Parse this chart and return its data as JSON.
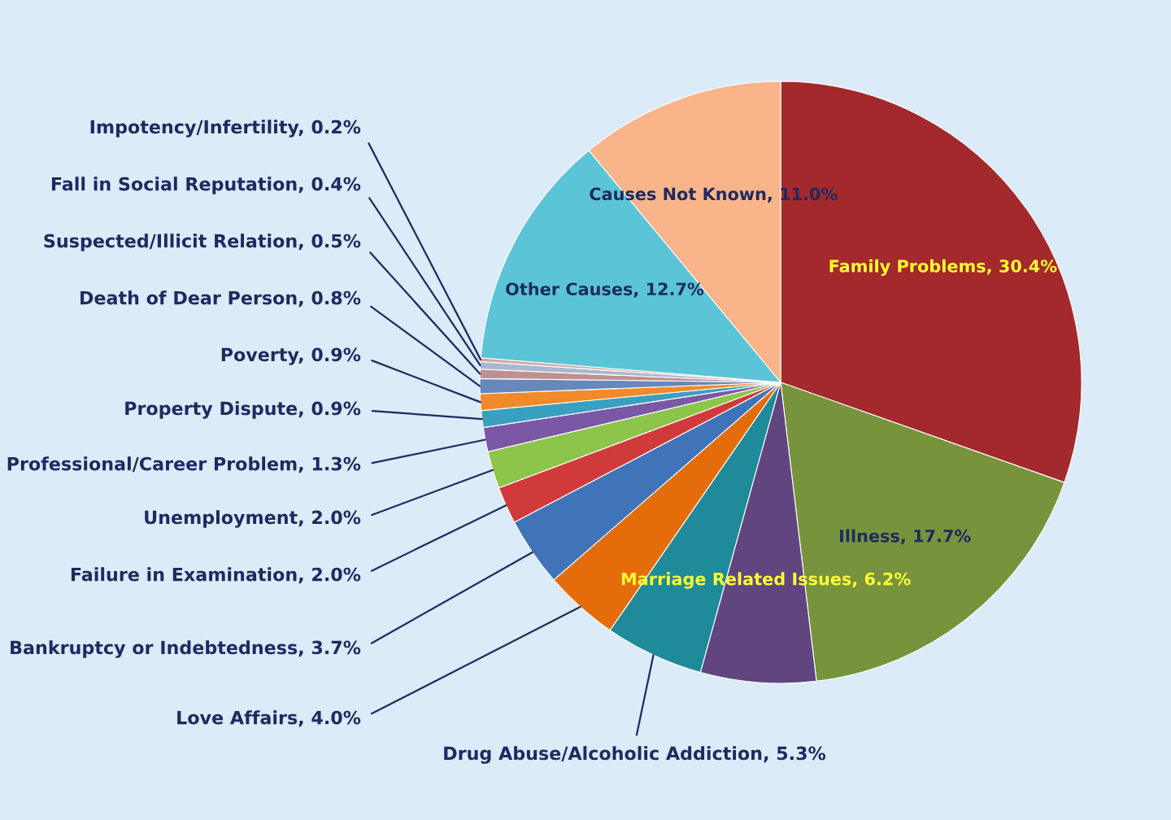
{
  "chart_data": {
    "type": "pie",
    "categories": [
      "Family Problems",
      "Illness",
      "Marriage Related Issues",
      "Drug Abuse/Alcoholic Addiction",
      "Love Affairs",
      "Bankruptcy or Indebtedness",
      "Failure in Examination",
      "Unemployment",
      "Professional/Career Problem",
      "Property Dispute",
      "Poverty",
      "Death of Dear Person",
      "Suspected/Illicit Relation",
      "Fall in Social Reputation",
      "Impotency/Infertility",
      "Other Causes",
      "Causes Not Known"
    ],
    "values": [
      30.4,
      17.7,
      6.2,
      5.3,
      4.0,
      3.7,
      2.0,
      2.0,
      1.3,
      0.9,
      0.9,
      0.8,
      0.5,
      0.4,
      0.2,
      12.7,
      11.0
    ],
    "value_labels": [
      "30.4%",
      "17.7%",
      "6.2%",
      "5.3%",
      "4.0%",
      "3.7%",
      "2.0%",
      "2.0%",
      "1.3%",
      "0.9%",
      "0.9%",
      "0.8%",
      "0.5%",
      "0.4%",
      "0.2%",
      "12.7%",
      "11.0%"
    ],
    "colors": [
      "#a3292c",
      "#77933c",
      "#60457e",
      "#1f8a99",
      "#e46c0a",
      "#3f74b8",
      "#d03a3a",
      "#8dc44a",
      "#7a58a6",
      "#3aa0c0",
      "#f08a2a",
      "#6688bb",
      "#c09090",
      "#a8b8d0",
      "#d0a8a0",
      "#5bc4d6",
      "#f9b48a"
    ]
  }
}
